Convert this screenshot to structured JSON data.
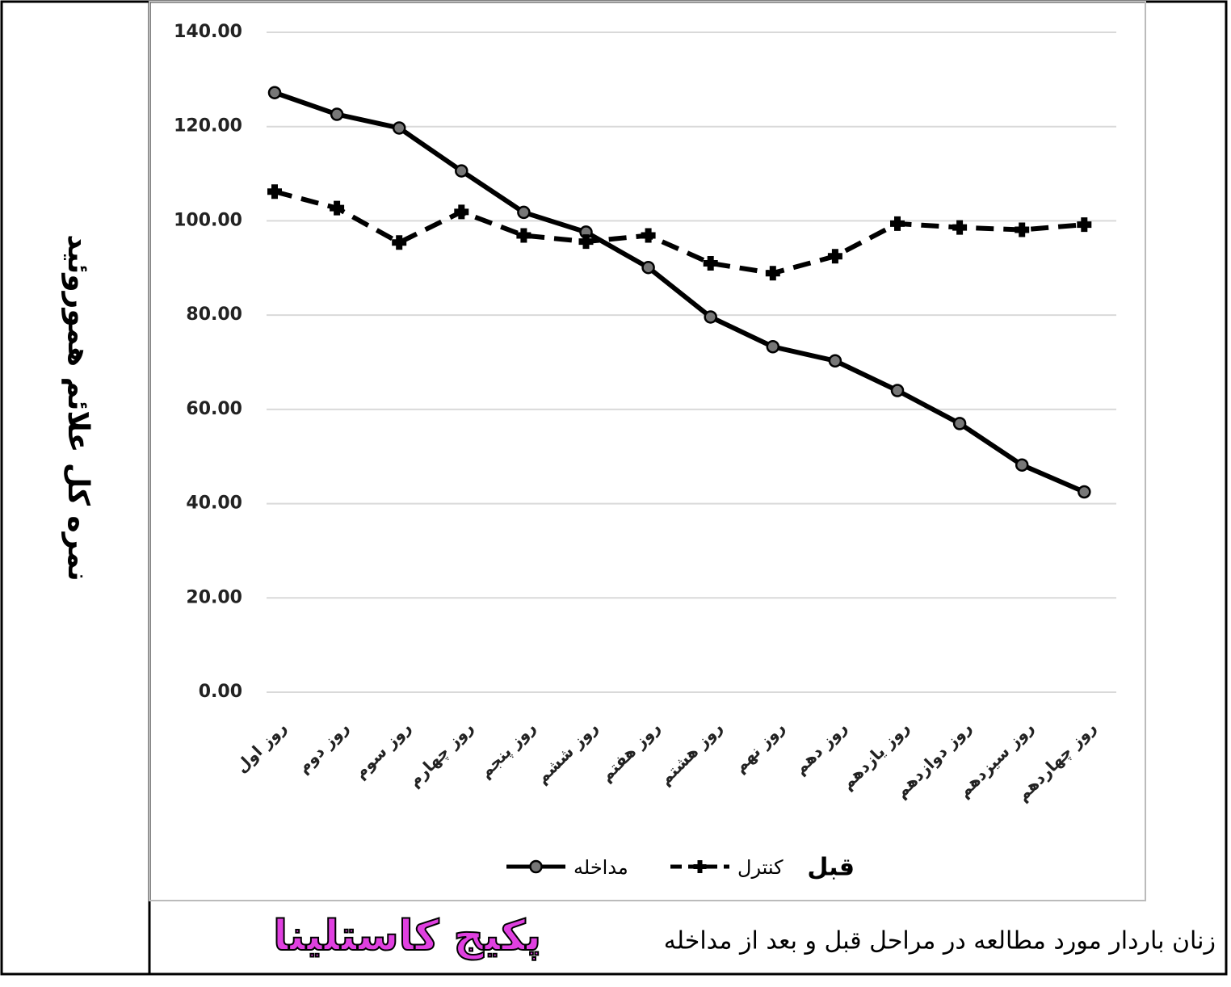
{
  "chart_data": {
    "type": "line",
    "y_label": "نمره کل علائم هموروئید",
    "categories": [
      "روز اول",
      "روز دوم",
      "روز سوم",
      "روز چهارم",
      "روز پنجم",
      "روز ششم",
      "روز هفتم",
      "روز هشتم",
      "روز نهم",
      "روز دهم",
      "روز یازدهم",
      "روز دوازدهم",
      "روز سیزدهم",
      "روز چهاردهم"
    ],
    "series": [
      {
        "name": "مداخله",
        "color": "#000000",
        "dash": false,
        "values": [
          127.2,
          122.6,
          119.7,
          110.6,
          101.8,
          97.6,
          90.1,
          79.6,
          73.3,
          70.3,
          64.0,
          57.0,
          48.2,
          42.5
        ]
      },
      {
        "name": "کنترل",
        "color": "#000000",
        "dash": true,
        "values": [
          106.2,
          102.7,
          95.4,
          101.9,
          96.9,
          95.6,
          96.9,
          91.0,
          88.9,
          92.5,
          99.4,
          98.6,
          98.1,
          99.2
        ]
      }
    ],
    "legend_note": "قبل",
    "ylim": [
      0,
      140
    ],
    "yticks": [
      {
        "value": 0,
        "label": "0.00"
      },
      {
        "value": 20,
        "label": "20.00"
      },
      {
        "value": 40,
        "label": "40.00"
      },
      {
        "value": 60,
        "label": "60.00"
      },
      {
        "value": 80,
        "label": "80.00"
      },
      {
        "value": 100,
        "label": "100.00"
      },
      {
        "value": 120,
        "label": "120.00"
      },
      {
        "value": 140,
        "label": "140.00"
      }
    ],
    "grid": true,
    "caption": "زنان باردار مورد مطالعه در مراحل قبل و بعد از مداخله",
    "watermark": "پکیج کاستلینا"
  }
}
